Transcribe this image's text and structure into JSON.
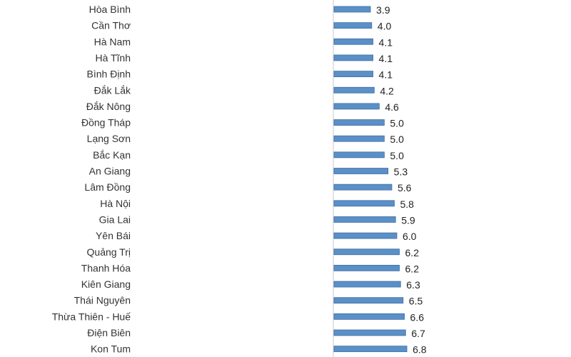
{
  "chart_data": {
    "type": "bar",
    "orientation": "horizontal",
    "categories": [
      "Hòa Bình",
      "Cần Thơ",
      "Hà Nam",
      "Hà Tĩnh",
      "Bình Định",
      "Đắk Lắk",
      "Đắk Nông",
      "Đồng Tháp",
      "Lạng Sơn",
      "Bắc Kạn",
      "An Giang",
      "Lâm Đồng",
      "Hà Nội",
      "Gia Lai",
      "Yên Bái",
      "Quảng Trị",
      "Thanh Hóa",
      "Kiên Giang",
      "Thái Nguyên",
      "Thừa Thiên - Huế",
      "Điện Biên",
      "Kon Tum"
    ],
    "values": [
      3.9,
      4.0,
      4.1,
      4.1,
      4.1,
      4.2,
      4.6,
      5.0,
      5.0,
      5.0,
      5.3,
      5.6,
      5.8,
      5.9,
      6.0,
      6.2,
      6.2,
      6.3,
      6.5,
      6.6,
      6.7,
      6.8
    ],
    "value_labels": [
      "3.9",
      "4.0",
      "4.1",
      "4.1",
      "4.1",
      "4.2",
      "4.6",
      "5.0",
      "5.0",
      "5.0",
      "5.3",
      "5.6",
      "5.8",
      "5.9",
      "6.0",
      "6.2",
      "6.2",
      "6.3",
      "6.5",
      "6.6",
      "6.7",
      "6.8"
    ],
    "title": "",
    "xlabel": "",
    "ylabel": "",
    "xlim": [
      0,
      6.8
    ],
    "grid": false,
    "legend": "none",
    "bar_color": "#5b8fc7"
  }
}
